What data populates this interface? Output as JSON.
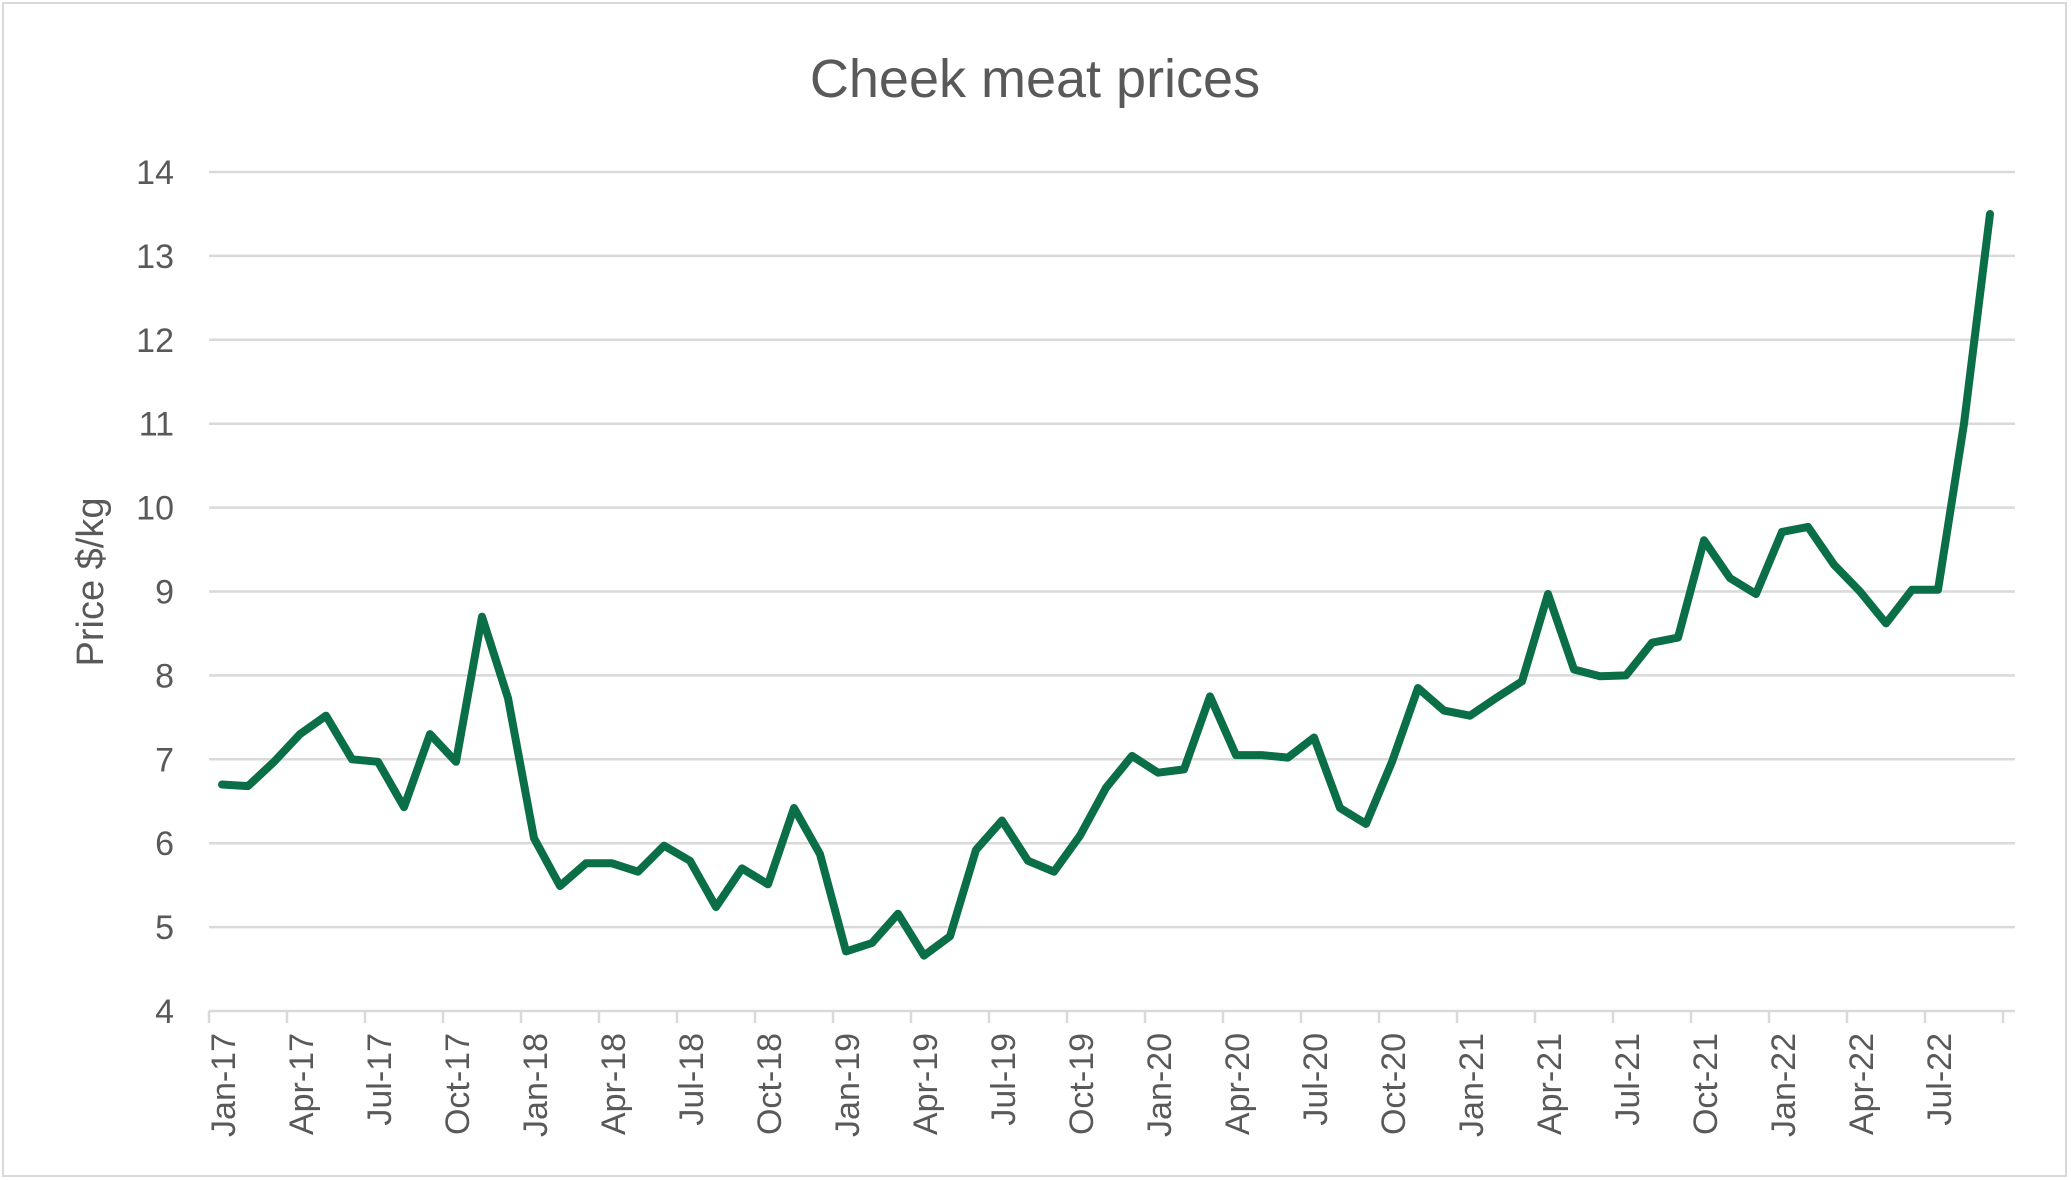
{
  "chart_data": {
    "type": "line",
    "title": "Cheek meat prices",
    "xlabel": "",
    "ylabel": "Price $/kg",
    "ylim": [
      4,
      14
    ],
    "yticks": [
      4,
      5,
      6,
      7,
      8,
      9,
      10,
      11,
      12,
      13,
      14
    ],
    "grid": true,
    "legend": "none",
    "line_color": "#0a6e46",
    "grid_color": "#d9d9d9",
    "x_tick_labels": [
      "Jan-17",
      "Apr-17",
      "Jul-17",
      "Oct-17",
      "Jan-18",
      "Apr-18",
      "Jul-18",
      "Oct-18",
      "Jan-19",
      "Apr-19",
      "Jul-19",
      "Oct-19",
      "Jan-20",
      "Apr-20",
      "Jul-20",
      "Oct-20",
      "Jan-21",
      "Apr-21",
      "Jul-21",
      "Oct-21",
      "Jan-22",
      "Apr-22",
      "Jul-22"
    ],
    "x": [
      "Jan-17",
      "Feb-17",
      "Mar-17",
      "Apr-17",
      "May-17",
      "Jun-17",
      "Jul-17",
      "Aug-17",
      "Sep-17",
      "Oct-17",
      "Nov-17",
      "Dec-17",
      "Jan-18",
      "Feb-18",
      "Mar-18",
      "Apr-18",
      "May-18",
      "Jun-18",
      "Jul-18",
      "Aug-18",
      "Sep-18",
      "Oct-18",
      "Nov-18",
      "Dec-18",
      "Jan-19",
      "Feb-19",
      "Mar-19",
      "Apr-19",
      "May-19",
      "Jun-19",
      "Jul-19",
      "Aug-19",
      "Sep-19",
      "Oct-19",
      "Nov-19",
      "Dec-19",
      "Jan-20",
      "Feb-20",
      "Mar-20",
      "Apr-20",
      "May-20",
      "Jun-20",
      "Jul-20",
      "Aug-20",
      "Sep-20",
      "Oct-20",
      "Nov-20",
      "Dec-20",
      "Jan-21",
      "Feb-21",
      "Mar-21",
      "Apr-21",
      "May-21",
      "Jun-21",
      "Jul-21",
      "Aug-21",
      "Sep-21",
      "Oct-21",
      "Nov-21",
      "Dec-21",
      "Jan-22",
      "Feb-22",
      "Mar-22",
      "Apr-22",
      "May-22",
      "Jun-22",
      "Jul-22",
      "Aug-22",
      "Sep-22"
    ],
    "values": [
      6.7,
      6.68,
      6.97,
      7.3,
      7.52,
      7.0,
      6.97,
      6.43,
      7.3,
      6.97,
      8.7,
      7.73,
      6.06,
      5.49,
      5.76,
      5.76,
      5.66,
      5.97,
      5.79,
      5.24,
      5.7,
      5.51,
      6.42,
      5.87,
      4.71,
      4.81,
      5.16,
      4.66,
      4.89,
      5.92,
      6.27,
      5.79,
      5.66,
      6.09,
      6.66,
      7.04,
      6.84,
      6.88,
      7.75,
      7.05,
      7.05,
      7.02,
      7.26,
      6.42,
      6.23,
      6.97,
      7.85,
      7.58,
      7.52,
      7.73,
      7.93,
      8.97,
      8.07,
      7.99,
      8.0,
      8.39,
      8.45,
      9.61,
      9.16,
      8.97,
      9.71,
      9.77,
      9.32,
      9.0,
      8.62,
      9.02,
      9.02,
      11.0,
      13.5
    ]
  }
}
